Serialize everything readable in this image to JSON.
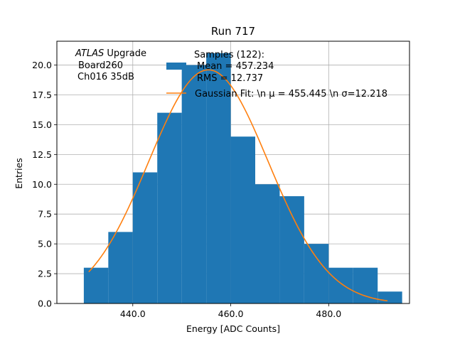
{
  "chart_data": {
    "type": "histogram",
    "title": "Run 717",
    "xlabel": "Energy [ADC Counts]",
    "ylabel": "Entries",
    "xlim": [
      424.5,
      496.5
    ],
    "ylim": [
      0,
      22
    ],
    "grid": true,
    "xticks": [
      440,
      460,
      480
    ],
    "xtick_labels": [
      "440.0",
      "460.0",
      "480.0"
    ],
    "yticks": [
      0,
      2.5,
      5,
      7.5,
      10,
      12.5,
      15,
      17.5,
      20
    ],
    "ytick_labels": [
      "0.0",
      "2.5",
      "5.0",
      "7.5",
      "10.0",
      "12.5",
      "15.0",
      "17.5",
      "20.0"
    ],
    "bins": [
      {
        "x0": 430,
        "x1": 435,
        "count": 3
      },
      {
        "x0": 435,
        "x1": 440,
        "count": 6
      },
      {
        "x0": 440,
        "x1": 445,
        "count": 11
      },
      {
        "x0": 445,
        "x1": 450,
        "count": 16
      },
      {
        "x0": 450,
        "x1": 455,
        "count": 20
      },
      {
        "x0": 455,
        "x1": 460,
        "count": 21
      },
      {
        "x0": 460,
        "x1": 465,
        "count": 14
      },
      {
        "x0": 465,
        "x1": 470,
        "count": 10
      },
      {
        "x0": 470,
        "x1": 475,
        "count": 9
      },
      {
        "x0": 475,
        "x1": 480,
        "count": 5
      },
      {
        "x0": 480,
        "x1": 485,
        "count": 3
      },
      {
        "x0": 485,
        "x1": 490,
        "count": 3
      },
      {
        "x0": 490,
        "x1": 495,
        "count": 1
      }
    ],
    "fit": {
      "amplitude": 19.6,
      "mean": 455.445,
      "sigma": 12.218,
      "x_range": [
        431,
        492
      ]
    },
    "annotation": {
      "atlas": "ATLAS",
      "line1_rest": " Upgrade",
      "line2": "Board260",
      "line3": "Ch016 35dB"
    },
    "legend": {
      "placement": "upper right",
      "hist_label": [
        "Samples (122):",
        "Mean = 457.234",
        "RMS = 12.737"
      ],
      "fit_label": "Gaussian Fit: \\n μ = 455.445 \\n σ=12.218"
    },
    "colors": {
      "bar": "#1f77b4",
      "fit": "#ff7f0e",
      "grid": "#b0b0b0"
    }
  }
}
